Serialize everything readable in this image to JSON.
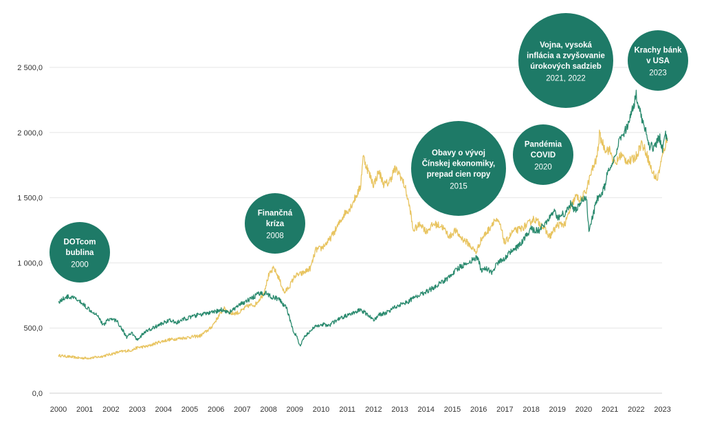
{
  "chart_data": {
    "type": "line",
    "title": "",
    "xlabel": "",
    "ylabel": "",
    "ylim": [
      0,
      2700
    ],
    "xlim": [
      1999.8,
      2023.3
    ],
    "grid": true,
    "y_ticks": [
      {
        "value": 0,
        "label": "0,0"
      },
      {
        "value": 500,
        "label": "500,0"
      },
      {
        "value": 1000,
        "label": "1 000,0"
      },
      {
        "value": 1500,
        "label": "1 500,0"
      },
      {
        "value": 2000,
        "label": "2 000,0"
      },
      {
        "value": 2500,
        "label": "2 500,0"
      }
    ],
    "x_ticks": [
      "2000",
      "2001",
      "2002",
      "2003",
      "2004",
      "2005",
      "2006",
      "2007",
      "2008",
      "2009",
      "2010",
      "2011",
      "2012",
      "2013",
      "2014",
      "2015",
      "2016",
      "2017",
      "2018",
      "2019",
      "2020",
      "2021",
      "2022",
      "2023"
    ],
    "series": [
      {
        "key": "green",
        "color": "#2a8a6e",
        "points": [
          [
            2000.0,
            700
          ],
          [
            2000.3,
            740
          ],
          [
            2000.6,
            730
          ],
          [
            2000.9,
            690
          ],
          [
            2001.2,
            640
          ],
          [
            2001.5,
            600
          ],
          [
            2001.7,
            520
          ],
          [
            2001.9,
            570
          ],
          [
            2002.2,
            560
          ],
          [
            2002.4,
            500
          ],
          [
            2002.6,
            430
          ],
          [
            2002.8,
            460
          ],
          [
            2003.0,
            410
          ],
          [
            2003.3,
            470
          ],
          [
            2003.6,
            500
          ],
          [
            2003.9,
            530
          ],
          [
            2004.2,
            560
          ],
          [
            2004.5,
            540
          ],
          [
            2004.8,
            570
          ],
          [
            2005.0,
            580
          ],
          [
            2005.3,
            600
          ],
          [
            2005.6,
            610
          ],
          [
            2005.9,
            620
          ],
          [
            2006.2,
            640
          ],
          [
            2006.5,
            620
          ],
          [
            2006.8,
            660
          ],
          [
            2007.0,
            690
          ],
          [
            2007.3,
            720
          ],
          [
            2007.6,
            760
          ],
          [
            2007.9,
            770
          ],
          [
            2008.1,
            740
          ],
          [
            2008.4,
            720
          ],
          [
            2008.7,
            650
          ],
          [
            2008.9,
            500
          ],
          [
            2009.1,
            420
          ],
          [
            2009.2,
            360
          ],
          [
            2009.4,
            440
          ],
          [
            2009.7,
            500
          ],
          [
            2010.0,
            530
          ],
          [
            2010.3,
            520
          ],
          [
            2010.6,
            560
          ],
          [
            2010.9,
            590
          ],
          [
            2011.2,
            610
          ],
          [
            2011.5,
            640
          ],
          [
            2011.8,
            600
          ],
          [
            2012.0,
            560
          ],
          [
            2012.2,
            600
          ],
          [
            2012.5,
            620
          ],
          [
            2012.8,
            660
          ],
          [
            2013.0,
            680
          ],
          [
            2013.3,
            700
          ],
          [
            2013.6,
            740
          ],
          [
            2013.9,
            770
          ],
          [
            2014.2,
            800
          ],
          [
            2014.5,
            840
          ],
          [
            2014.8,
            880
          ],
          [
            2015.0,
            920
          ],
          [
            2015.3,
            970
          ],
          [
            2015.6,
            1000
          ],
          [
            2015.9,
            1040
          ],
          [
            2016.0,
            1020
          ],
          [
            2016.1,
            940
          ],
          [
            2016.3,
            960
          ],
          [
            2016.5,
            920
          ],
          [
            2016.7,
            1000
          ],
          [
            2016.9,
            1020
          ],
          [
            2017.2,
            1080
          ],
          [
            2017.5,
            1120
          ],
          [
            2017.8,
            1200
          ],
          [
            2018.0,
            1260
          ],
          [
            2018.3,
            1250
          ],
          [
            2018.6,
            1320
          ],
          [
            2018.9,
            1400
          ],
          [
            2019.0,
            1350
          ],
          [
            2019.3,
            1380
          ],
          [
            2019.5,
            1450
          ],
          [
            2019.7,
            1400
          ],
          [
            2019.9,
            1480
          ],
          [
            2020.1,
            1500
          ],
          [
            2020.2,
            1240
          ],
          [
            2020.5,
            1480
          ],
          [
            2020.8,
            1580
          ],
          [
            2020.9,
            1680
          ],
          [
            2021.1,
            1740
          ],
          [
            2021.3,
            1900
          ],
          [
            2021.5,
            1980
          ],
          [
            2021.7,
            2050
          ],
          [
            2021.9,
            2200
          ],
          [
            2022.0,
            2300
          ],
          [
            2022.1,
            2180
          ],
          [
            2022.3,
            2060
          ],
          [
            2022.5,
            1880
          ],
          [
            2022.7,
            1900
          ],
          [
            2022.9,
            1960
          ],
          [
            2023.0,
            1880
          ],
          [
            2023.1,
            2010
          ],
          [
            2023.2,
            1940
          ]
        ]
      },
      {
        "key": "yellow",
        "color": "#e8c460",
        "points": [
          [
            2000.0,
            290
          ],
          [
            2000.4,
            280
          ],
          [
            2000.8,
            270
          ],
          [
            2001.2,
            270
          ],
          [
            2001.6,
            280
          ],
          [
            2002.0,
            300
          ],
          [
            2002.4,
            320
          ],
          [
            2002.8,
            330
          ],
          [
            2003.0,
            350
          ],
          [
            2003.4,
            360
          ],
          [
            2003.8,
            390
          ],
          [
            2004.2,
            410
          ],
          [
            2004.6,
            420
          ],
          [
            2005.0,
            430
          ],
          [
            2005.4,
            440
          ],
          [
            2005.8,
            500
          ],
          [
            2006.0,
            560
          ],
          [
            2006.3,
            650
          ],
          [
            2006.6,
            610
          ],
          [
            2006.9,
            620
          ],
          [
            2007.2,
            670
          ],
          [
            2007.5,
            680
          ],
          [
            2007.8,
            760
          ],
          [
            2008.0,
            900
          ],
          [
            2008.2,
            960
          ],
          [
            2008.4,
            880
          ],
          [
            2008.6,
            770
          ],
          [
            2008.8,
            820
          ],
          [
            2009.0,
            900
          ],
          [
            2009.3,
            920
          ],
          [
            2009.6,
            960
          ],
          [
            2009.8,
            1100
          ],
          [
            2010.0,
            1110
          ],
          [
            2010.3,
            1170
          ],
          [
            2010.6,
            1270
          ],
          [
            2010.9,
            1380
          ],
          [
            2011.1,
            1420
          ],
          [
            2011.3,
            1500
          ],
          [
            2011.5,
            1580
          ],
          [
            2011.6,
            1820
          ],
          [
            2011.8,
            1700
          ],
          [
            2012.0,
            1600
          ],
          [
            2012.2,
            1700
          ],
          [
            2012.4,
            1600
          ],
          [
            2012.6,
            1620
          ],
          [
            2012.8,
            1720
          ],
          [
            2013.0,
            1680
          ],
          [
            2013.2,
            1580
          ],
          [
            2013.4,
            1400
          ],
          [
            2013.5,
            1250
          ],
          [
            2013.8,
            1300
          ],
          [
            2014.0,
            1240
          ],
          [
            2014.3,
            1300
          ],
          [
            2014.6,
            1280
          ],
          [
            2014.9,
            1200
          ],
          [
            2015.1,
            1250
          ],
          [
            2015.3,
            1200
          ],
          [
            2015.6,
            1150
          ],
          [
            2015.9,
            1080
          ],
          [
            2016.1,
            1180
          ],
          [
            2016.4,
            1260
          ],
          [
            2016.6,
            1330
          ],
          [
            2016.8,
            1300
          ],
          [
            2017.0,
            1150
          ],
          [
            2017.3,
            1240
          ],
          [
            2017.6,
            1260
          ],
          [
            2017.9,
            1300
          ],
          [
            2018.1,
            1340
          ],
          [
            2018.4,
            1290
          ],
          [
            2018.7,
            1200
          ],
          [
            2019.0,
            1290
          ],
          [
            2019.3,
            1300
          ],
          [
            2019.5,
            1420
          ],
          [
            2019.7,
            1510
          ],
          [
            2019.9,
            1480
          ],
          [
            2020.1,
            1560
          ],
          [
            2020.3,
            1700
          ],
          [
            2020.5,
            1800
          ],
          [
            2020.6,
            1980
          ],
          [
            2020.8,
            1880
          ],
          [
            2021.0,
            1860
          ],
          [
            2021.2,
            1750
          ],
          [
            2021.4,
            1830
          ],
          [
            2021.6,
            1790
          ],
          [
            2021.8,
            1780
          ],
          [
            2022.0,
            1820
          ],
          [
            2022.2,
            1920
          ],
          [
            2022.4,
            1840
          ],
          [
            2022.6,
            1700
          ],
          [
            2022.8,
            1640
          ],
          [
            2023.0,
            1820
          ],
          [
            2023.1,
            1900
          ],
          [
            2023.2,
            1950
          ]
        ]
      }
    ],
    "annotations": [
      {
        "key": "dotcom",
        "lines": [
          "DOTcom",
          "bublina"
        ],
        "year": "2000"
      },
      {
        "key": "financial",
        "lines": [
          "Finančná",
          "kríza"
        ],
        "year": "2008"
      },
      {
        "key": "china",
        "lines": [
          "Obavy o vývoj",
          "Čínskej ekonomiky,",
          "prepad cien ropy"
        ],
        "year": "2015"
      },
      {
        "key": "covid",
        "lines": [
          "Pandémia",
          "COVID"
        ],
        "year": "2020"
      },
      {
        "key": "war",
        "lines": [
          "Vojna, vysoká",
          "inflácia a zvyšovanie",
          "úrokových sadzieb"
        ],
        "year": "2021, 2022"
      },
      {
        "key": "banks",
        "lines": [
          "Krachy bánk",
          "v USA"
        ],
        "year": "2023"
      }
    ],
    "annotation_color": "#1e7a67"
  }
}
